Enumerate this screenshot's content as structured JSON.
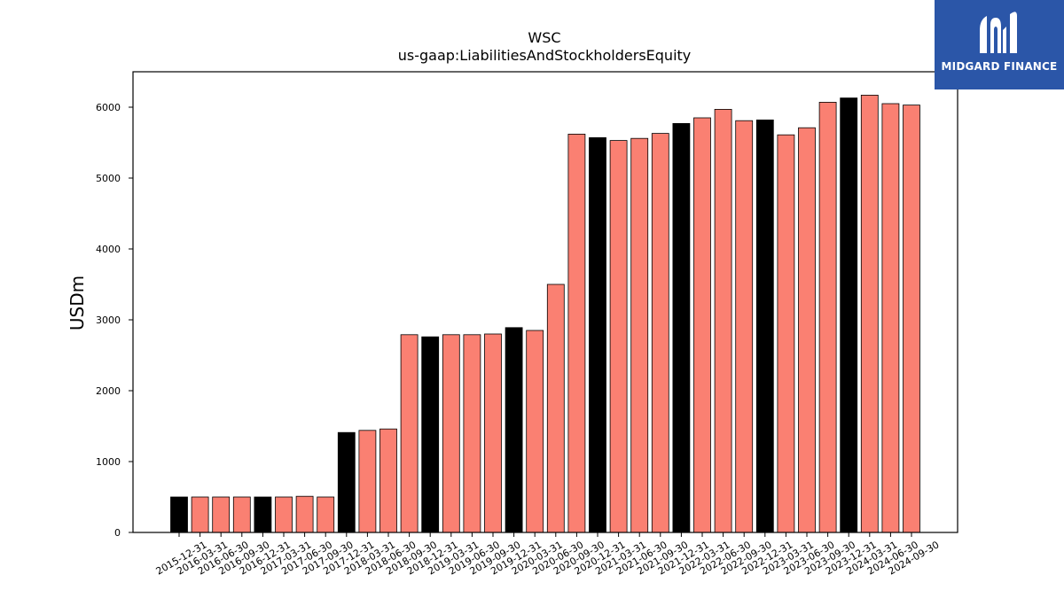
{
  "logo": {
    "text": "MIDGARD FINANCE",
    "background": "#2b56a8"
  },
  "chart_data": {
    "type": "bar",
    "title": "WSC",
    "subtitle": "us-gaap:LiabilitiesAndStockholdersEquity",
    "xlabel": "",
    "ylabel": "USDm",
    "ylim": [
      0,
      6500
    ],
    "yticks": [
      0,
      1000,
      2000,
      3000,
      4000,
      5000,
      6000
    ],
    "grid": false,
    "colors": {
      "quarter": "#fa8072",
      "year_end": "#000000",
      "edge": "#000000"
    },
    "categories": [
      "2015-12-31",
      "2016-03-31",
      "2016-06-30",
      "2016-09-30",
      "2016-12-31",
      "2017-03-31",
      "2017-06-30",
      "2017-09-30",
      "2017-12-31",
      "2018-03-31",
      "2018-06-30",
      "2018-09-30",
      "2018-12-31",
      "2019-03-31",
      "2019-06-30",
      "2019-09-30",
      "2019-12-31",
      "2020-03-31",
      "2020-06-30",
      "2020-09-30",
      "2020-12-31",
      "2021-03-31",
      "2021-06-30",
      "2021-09-30",
      "2021-12-31",
      "2022-03-31",
      "2022-06-30",
      "2022-09-30",
      "2022-12-31",
      "2023-03-31",
      "2023-06-30",
      "2023-09-30",
      "2023-12-31",
      "2024-03-31",
      "2024-06-30",
      "2024-09-30"
    ],
    "values": [
      500,
      500,
      500,
      500,
      500,
      500,
      510,
      500,
      1410,
      1440,
      1460,
      2790,
      2760,
      2790,
      2790,
      2800,
      2890,
      2850,
      3500,
      5620,
      5570,
      5530,
      5560,
      5630,
      5770,
      5850,
      5970,
      5810,
      5820,
      5610,
      5710,
      6070,
      6130,
      6170,
      6050,
      6030
    ]
  }
}
